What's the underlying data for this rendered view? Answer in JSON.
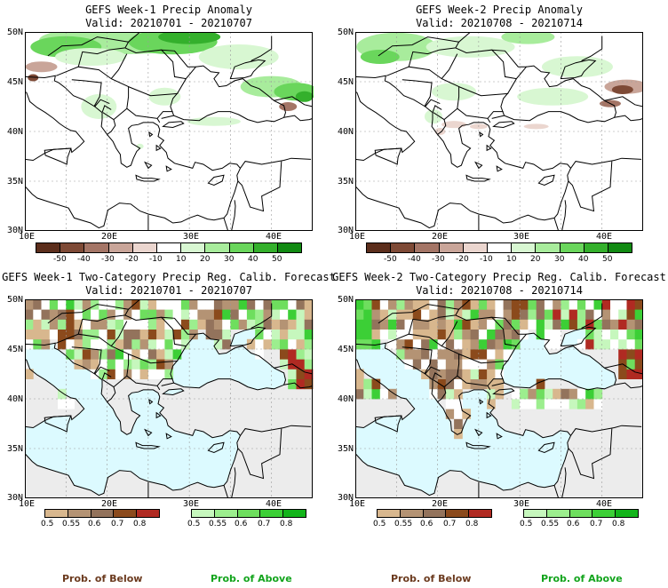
{
  "panels": {
    "tl": {
      "title": "GEFS Week-1 Precip Anomaly",
      "valid": "Valid: 20210701 - 20210707"
    },
    "tr": {
      "title": "GEFS Week-2 Precip Anomaly",
      "valid": "Valid: 20210708 - 20210714"
    },
    "bl": {
      "title": "GEFS Week-1 Two-Category Precip Reg. Calib. Forecast",
      "valid": "Valid: 20210701 - 20210707"
    },
    "br": {
      "title": "GEFS Week-2 Two-Category Precip Reg. Calib. Forecast",
      "valid": "Valid: 20210708 - 20210714"
    }
  },
  "axes": {
    "lat": [
      "50N",
      "45N",
      "40N",
      "35N",
      "30N"
    ],
    "lon": [
      "10E",
      "20E",
      "30E",
      "40E"
    ]
  },
  "anomaly_scale": {
    "labels": [
      "-50",
      "-40",
      "-30",
      "-20",
      "-10",
      "10",
      "20",
      "30",
      "40",
      "50"
    ],
    "colors": [
      "#5c2e1c",
      "#7e4a36",
      "#a47566",
      "#c9a599",
      "#ebd6cf",
      "#ffffff",
      "#d8f7d2",
      "#a8ec9c",
      "#6ad65c",
      "#34b02c",
      "#118a12"
    ]
  },
  "below_scale": {
    "labels": [
      "0.5",
      "0.55",
      "0.6",
      "0.7",
      "0.8"
    ],
    "colors": [
      "#d8b78e",
      "#b49374",
      "#93735c",
      "#8b4a1c",
      "#b02a22"
    ]
  },
  "above_scale": {
    "labels": [
      "0.5",
      "0.55",
      "0.6",
      "0.7",
      "0.8"
    ],
    "colors": [
      "#c6f7bd",
      "#9cee8e",
      "#6ede5e",
      "#3ccf36",
      "#12b41a"
    ]
  },
  "legend": {
    "below": "Prob. of Below",
    "above": "Prob. of Above"
  },
  "colors": {
    "sea": "#dcfaff",
    "no_data": "#ececec",
    "below_text": "#6b3a1e",
    "above_text": "#12a41c"
  }
}
